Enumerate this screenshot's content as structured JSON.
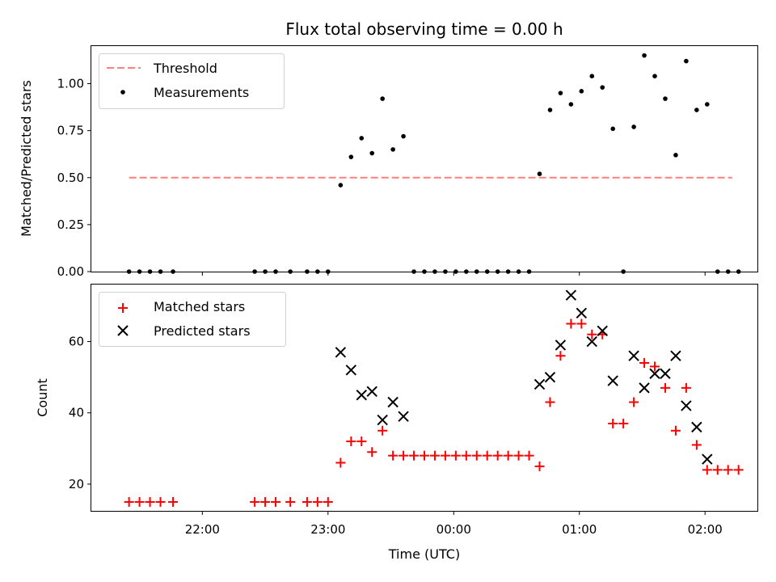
{
  "chart_data": [
    {
      "type": "scatter",
      "title": "Flux total observing time = 0.00 h",
      "xlabel": "",
      "ylabel": "Matched/Predicted stars",
      "ylim": [
        0,
        1.2
      ],
      "xlim": [
        "21:07",
        "02:25"
      ],
      "yticks": [
        0.0,
        0.25,
        0.5,
        0.75,
        1.0
      ],
      "ytick_labels": [
        "0.00",
        "0.25",
        "0.50",
        "0.75",
        "1.00"
      ],
      "legend_position": "top-left",
      "legend": [
        "Threshold",
        "Measurements"
      ],
      "threshold": {
        "name": "Threshold",
        "value": 0.5,
        "x_start": "21:25",
        "x_end": "02:13",
        "color": "#ff7f7f",
        "style": "dashed"
      },
      "series": [
        {
          "name": "Measurements",
          "marker": "dot",
          "color": "#000000",
          "x": [
            "21:25",
            "21:30",
            "21:35",
            "21:40",
            "21:46",
            "22:25",
            "22:30",
            "22:35",
            "22:42",
            "22:50",
            "22:55",
            "23:00",
            "23:06",
            "23:11",
            "23:16",
            "23:21",
            "23:26",
            "23:31",
            "23:36",
            "23:41",
            "23:46",
            "23:51",
            "23:56",
            "00:01",
            "00:06",
            "00:11",
            "00:16",
            "00:21",
            "00:26",
            "00:31",
            "00:36",
            "00:41",
            "00:46",
            "00:51",
            "00:56",
            "01:01",
            "01:06",
            "01:11",
            "01:16",
            "01:21",
            "01:26",
            "01:31",
            "01:36",
            "01:41",
            "01:46",
            "01:51",
            "01:56",
            "02:01",
            "02:06",
            "02:11",
            "02:16"
          ],
          "y": [
            0,
            0,
            0,
            0,
            0,
            0,
            0,
            0,
            0,
            0,
            0,
            0,
            0.46,
            0.61,
            0.71,
            0.63,
            0.92,
            0.65,
            0.72,
            0,
            0,
            0,
            0,
            0,
            0,
            0,
            0,
            0,
            0,
            0,
            0,
            0.52,
            0.86,
            0.95,
            0.89,
            0.96,
            1.04,
            0.98,
            0.76,
            0,
            0.77,
            1.15,
            1.04,
            0.92,
            0.62,
            1.12,
            0.86,
            0.89,
            0,
            0,
            0
          ]
        }
      ]
    },
    {
      "type": "scatter",
      "title": "",
      "xlabel": "Time (UTC)",
      "ylabel": "Count",
      "ylim": [
        12.5,
        76
      ],
      "xlim": [
        "21:07",
        "02:25"
      ],
      "yticks": [
        20,
        40,
        60
      ],
      "ytick_labels": [
        "20",
        "40",
        "60"
      ],
      "xticks": [
        "22:00",
        "23:00",
        "00:00",
        "01:00",
        "02:00"
      ],
      "legend_position": "top-left",
      "legend": [
        "Matched stars",
        "Predicted stars"
      ],
      "series": [
        {
          "name": "Matched stars",
          "marker": "plus",
          "color": "#ff0000",
          "x": [
            "21:25",
            "21:30",
            "21:35",
            "21:40",
            "21:46",
            "22:25",
            "22:30",
            "22:35",
            "22:42",
            "22:50",
            "22:55",
            "23:00",
            "23:06",
            "23:11",
            "23:16",
            "23:21",
            "23:26",
            "23:31",
            "23:36",
            "23:41",
            "23:46",
            "23:51",
            "23:56",
            "00:01",
            "00:06",
            "00:11",
            "00:16",
            "00:21",
            "00:26",
            "00:31",
            "00:36",
            "00:41",
            "00:46",
            "00:51",
            "00:56",
            "01:01",
            "01:06",
            "01:11",
            "01:16",
            "01:21",
            "01:26",
            "01:31",
            "01:36",
            "01:41",
            "01:46",
            "01:51",
            "01:56",
            "02:01",
            "02:06",
            "02:11",
            "02:16"
          ],
          "y": [
            15,
            15,
            15,
            15,
            15,
            15,
            15,
            15,
            15,
            15,
            15,
            15,
            26,
            32,
            32,
            29,
            35,
            28,
            28,
            28,
            28,
            28,
            28,
            28,
            28,
            28,
            28,
            28,
            28,
            28,
            28,
            25,
            43,
            56,
            65,
            65,
            62,
            62,
            37,
            37,
            43,
            54,
            53,
            47,
            35,
            47,
            31,
            24,
            24,
            24,
            24
          ]
        },
        {
          "name": "Predicted stars",
          "marker": "x",
          "color": "#000000",
          "x": [
            "23:06",
            "23:11",
            "23:16",
            "23:21",
            "23:26",
            "23:31",
            "23:36",
            "00:41",
            "00:46",
            "00:51",
            "00:56",
            "01:01",
            "01:06",
            "01:11",
            "01:16",
            "01:26",
            "01:31",
            "01:36",
            "01:41",
            "01:46",
            "01:51",
            "01:56",
            "02:01"
          ],
          "y": [
            57,
            52,
            45,
            46,
            38,
            43,
            39,
            48,
            50,
            59,
            73,
            68,
            60,
            63,
            49,
            56,
            47,
            51,
            51,
            56,
            42,
            36,
            27
          ]
        }
      ]
    }
  ]
}
